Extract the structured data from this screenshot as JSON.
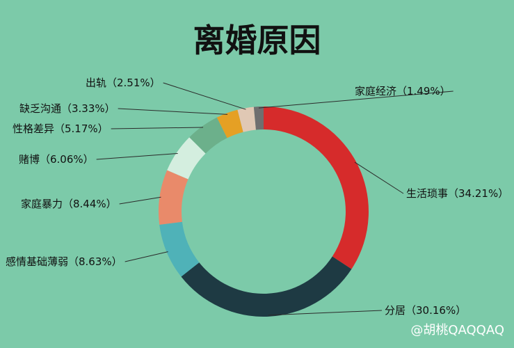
{
  "chart_data": {
    "type": "pie",
    "donut": true,
    "title": "离婚原因",
    "slices": [
      {
        "name": "生活琐事",
        "value": 34.21,
        "label": "生活琐事（34.21%）",
        "color": "#d62b2b"
      },
      {
        "name": "分居",
        "value": 30.16,
        "label": "分居（30.16%）",
        "color": "#1e3a43"
      },
      {
        "name": "感情基础薄弱",
        "value": 8.63,
        "label": "感情基础薄弱（8.63%）",
        "color": "#4fb2b8"
      },
      {
        "name": "家庭暴力",
        "value": 8.44,
        "label": "家庭暴力（8.44%）",
        "color": "#e98a6a"
      },
      {
        "name": "赌博",
        "value": 6.06,
        "label": "赌博（6.06%）",
        "color": "#d4eedf"
      },
      {
        "name": "性格差异",
        "value": 5.17,
        "label": "性格差异（5.17%）",
        "color": "#6cb08b"
      },
      {
        "name": "缺乏沟通",
        "value": 3.33,
        "label": "缺乏沟通（3.33%）",
        "color": "#e5a024"
      },
      {
        "name": "出轨",
        "value": 2.51,
        "label": "出轨（2.51%）",
        "color": "#e0c8b4"
      },
      {
        "name": "家庭经济",
        "value": 1.49,
        "label": "家庭经济（1.49%）",
        "color": "#6f6f6f"
      }
    ]
  },
  "watermark": "@胡桃QAQQAQ"
}
